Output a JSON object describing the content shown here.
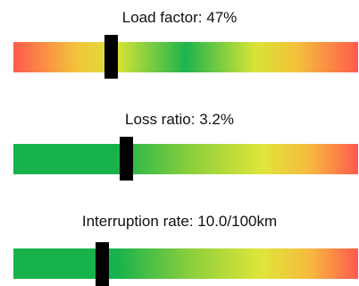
{
  "gauges": [
    {
      "label": "Load factor: 47%",
      "value": 47,
      "unit": "%",
      "scale": "red-yellow-green-yellow-red"
    },
    {
      "label": "Loss ratio: 3.2%",
      "value": 3.2,
      "unit": "%",
      "scale": "green-yellow-red"
    },
    {
      "label": "Interruption rate: 10.0/100km",
      "value": 10.0,
      "unit": "/100km",
      "scale": "green-yellow-red"
    }
  ],
  "colors": {
    "red": "#ff5a4d",
    "orange": "#f4c23b",
    "yellow": "#d8e436",
    "green": "#1db44d",
    "marker": "#000000"
  }
}
